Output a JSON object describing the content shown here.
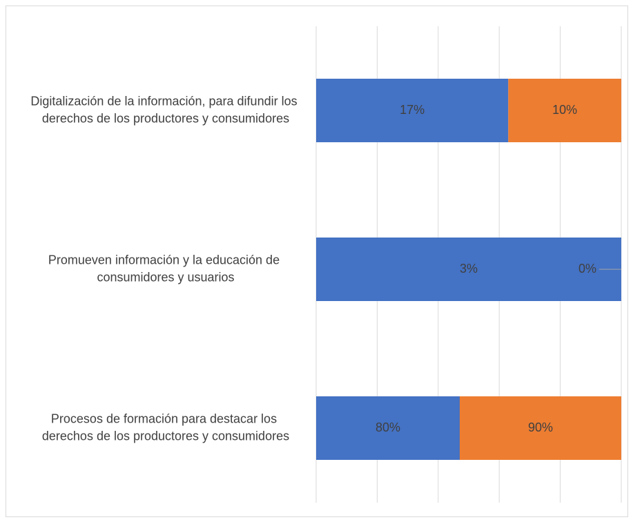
{
  "chart_data": {
    "type": "bar",
    "orientation": "horizontal",
    "stacked": "percent",
    "categories": [
      "Digitalización de la información, para difundir los derechos de los productores y consumidores",
      "Promueven información y la educación de consumidores y usuarios",
      "Procesos de formación para destacar los derechos de los productores y consumidores"
    ],
    "series": [
      {
        "color": "#4472c4",
        "values": [
          17,
          3,
          80
        ],
        "value_labels": [
          "17%",
          "3%",
          "80%"
        ]
      },
      {
        "color": "#ed7d31",
        "values": [
          10,
          0,
          90
        ],
        "value_labels": [
          "10%",
          "0%",
          "90%"
        ]
      }
    ],
    "xlim": [
      0,
      100
    ],
    "xticks": [
      0,
      20,
      40,
      60,
      80,
      100
    ],
    "grid": true
  }
}
